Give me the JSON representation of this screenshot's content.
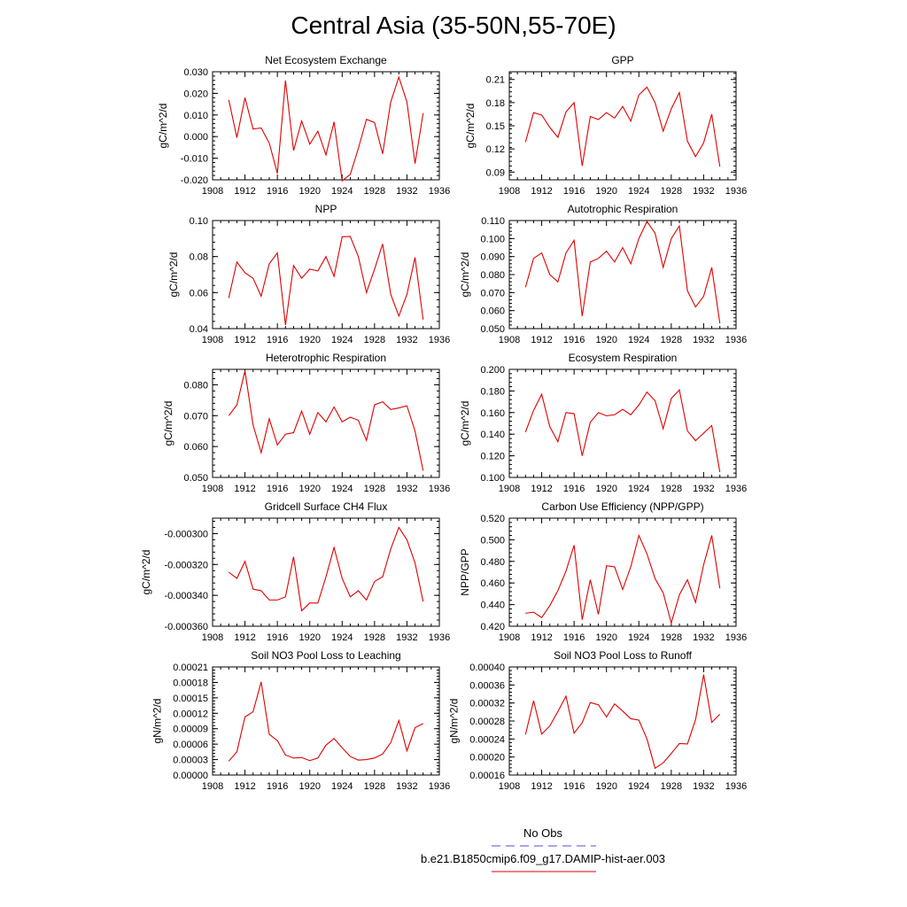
{
  "title": "Central Asia (35-50N,55-70E)",
  "colors": {
    "model_line": "#e00000",
    "obs_line": "#4f4fd8",
    "axes": "#000000"
  },
  "legend": {
    "entries": [
      {
        "label": "No Obs",
        "color": "#4f4fd8",
        "style": "dashed"
      },
      {
        "label": "b.e21.B1850cmip6.f09_g17.DAMIP-hist-aer.003",
        "color": "#e00000",
        "style": "solid"
      }
    ]
  },
  "chart_data": [
    {
      "type": "line",
      "title": "Net Ecosystem Exchange",
      "ylabel": "gC/m^2/d",
      "xlim": [
        1908,
        1936
      ],
      "xticks": [
        "1908",
        "1912",
        "1916",
        "1920",
        "1924",
        "1928",
        "1932",
        "1936"
      ],
      "ylim": [
        -0.02,
        0.03
      ],
      "yticks": [
        "-0.020",
        "-0.010",
        "0.000",
        "0.010",
        "0.020",
        "0.030"
      ],
      "x": [
        1910,
        1911,
        1912,
        1913,
        1914,
        1915,
        1916,
        1917,
        1918,
        1919,
        1920,
        1921,
        1922,
        1923,
        1924,
        1925,
        1926,
        1927,
        1928,
        1929,
        1930,
        1931,
        1932,
        1933,
        1934
      ],
      "series": [
        {
          "values": [
            0.017,
            -0.0005,
            0.018,
            0.0035,
            0.004,
            -0.003,
            -0.017,
            0.026,
            -0.0065,
            0.0072,
            -0.0035,
            0.0025,
            -0.0085,
            0.0068,
            -0.0205,
            -0.0175,
            -0.0055,
            0.008,
            0.0065,
            -0.008,
            0.016,
            0.0275,
            0.016,
            -0.0125,
            0.0108
          ]
        }
      ]
    },
    {
      "type": "line",
      "title": "GPP",
      "ylabel": "gC/m^2/d",
      "xlim": [
        1908,
        1936
      ],
      "xticks": [
        "1908",
        "1912",
        "1916",
        "1920",
        "1924",
        "1928",
        "1932",
        "1936"
      ],
      "ylim": [
        0.08,
        0.22
      ],
      "yticks": [
        "0.09",
        "0.12",
        "0.15",
        "0.18",
        "0.21"
      ],
      "x": [
        1910,
        1911,
        1912,
        1913,
        1914,
        1915,
        1916,
        1917,
        1918,
        1919,
        1920,
        1921,
        1922,
        1923,
        1924,
        1925,
        1926,
        1927,
        1928,
        1929,
        1930,
        1931,
        1932,
        1933,
        1934
      ],
      "series": [
        {
          "values": [
            0.129,
            0.167,
            0.164,
            0.148,
            0.135,
            0.168,
            0.18,
            0.098,
            0.162,
            0.158,
            0.167,
            0.16,
            0.175,
            0.156,
            0.19,
            0.2,
            0.18,
            0.143,
            0.172,
            0.193,
            0.13,
            0.11,
            0.128,
            0.165,
            0.097
          ]
        }
      ]
    },
    {
      "type": "line",
      "title": "NPP",
      "ylabel": "gC/m^2/d",
      "xlim": [
        1908,
        1936
      ],
      "xticks": [
        "1908",
        "1912",
        "1916",
        "1920",
        "1924",
        "1928",
        "1932",
        "1936"
      ],
      "ylim": [
        0.04,
        0.1
      ],
      "yticks": [
        "0.04",
        "0.06",
        "0.08",
        "0.10"
      ],
      "x": [
        1910,
        1911,
        1912,
        1913,
        1914,
        1915,
        1916,
        1917,
        1918,
        1919,
        1920,
        1921,
        1922,
        1923,
        1924,
        1925,
        1926,
        1927,
        1928,
        1929,
        1930,
        1931,
        1932,
        1933,
        1934
      ],
      "series": [
        {
          "values": [
            0.057,
            0.077,
            0.071,
            0.068,
            0.058,
            0.076,
            0.082,
            0.042,
            0.075,
            0.068,
            0.073,
            0.072,
            0.08,
            0.069,
            0.091,
            0.0912,
            0.08,
            0.06,
            0.073,
            0.087,
            0.059,
            0.047,
            0.059,
            0.0795,
            0.045
          ]
        }
      ]
    },
    {
      "type": "line",
      "title": "Autotrophic Respiration",
      "ylabel": "gC/m^2/d",
      "xlim": [
        1908,
        1936
      ],
      "xticks": [
        "1908",
        "1912",
        "1916",
        "1920",
        "1924",
        "1928",
        "1932",
        "1936"
      ],
      "ylim": [
        0.05,
        0.11
      ],
      "yticks": [
        "0.050",
        "0.060",
        "0.070",
        "0.080",
        "0.090",
        "0.100",
        "0.110"
      ],
      "x": [
        1910,
        1911,
        1912,
        1913,
        1914,
        1915,
        1916,
        1917,
        1918,
        1919,
        1920,
        1921,
        1922,
        1923,
        1924,
        1925,
        1926,
        1927,
        1928,
        1929,
        1930,
        1931,
        1932,
        1933,
        1934
      ],
      "series": [
        {
          "values": [
            0.073,
            0.089,
            0.092,
            0.08,
            0.076,
            0.092,
            0.099,
            0.057,
            0.087,
            0.089,
            0.093,
            0.087,
            0.095,
            0.086,
            0.1,
            0.1095,
            0.103,
            0.084,
            0.1,
            0.107,
            0.071,
            0.062,
            0.068,
            0.084,
            0.053
          ]
        }
      ]
    },
    {
      "type": "line",
      "title": "Heterotrophic Respiration",
      "ylabel": "gC/m^2/d",
      "xlim": [
        1908,
        1936
      ],
      "xticks": [
        "1908",
        "1912",
        "1916",
        "1920",
        "1924",
        "1928",
        "1932",
        "1936"
      ],
      "ylim": [
        0.05,
        0.085
      ],
      "yticks": [
        "0.050",
        "0.060",
        "0.070",
        "0.080"
      ],
      "x": [
        1910,
        1911,
        1912,
        1913,
        1914,
        1915,
        1916,
        1917,
        1918,
        1919,
        1920,
        1921,
        1922,
        1923,
        1924,
        1925,
        1926,
        1927,
        1928,
        1929,
        1930,
        1931,
        1932,
        1933,
        1934
      ],
      "series": [
        {
          "values": [
            0.07,
            0.0735,
            0.0845,
            0.067,
            0.058,
            0.069,
            0.0605,
            0.064,
            0.0645,
            0.0715,
            0.064,
            0.071,
            0.068,
            0.0728,
            0.068,
            0.0695,
            0.0685,
            0.062,
            0.0735,
            0.0745,
            0.072,
            0.0725,
            0.0732,
            0.065,
            0.0522
          ]
        }
      ]
    },
    {
      "type": "line",
      "title": "Ecosystem Respiration",
      "ylabel": "gC/m^2/d",
      "xlim": [
        1908,
        1936
      ],
      "xticks": [
        "1908",
        "1912",
        "1916",
        "1920",
        "1924",
        "1928",
        "1932",
        "1936"
      ],
      "ylim": [
        0.1,
        0.2
      ],
      "yticks": [
        "0.100",
        "0.120",
        "0.140",
        "0.160",
        "0.180",
        "0.200"
      ],
      "x": [
        1910,
        1911,
        1912,
        1913,
        1914,
        1915,
        1916,
        1917,
        1918,
        1919,
        1920,
        1921,
        1922,
        1923,
        1924,
        1925,
        1926,
        1927,
        1928,
        1929,
        1930,
        1931,
        1932,
        1933,
        1934
      ],
      "series": [
        {
          "values": [
            0.142,
            0.162,
            0.177,
            0.147,
            0.133,
            0.16,
            0.159,
            0.12,
            0.151,
            0.16,
            0.157,
            0.158,
            0.163,
            0.158,
            0.167,
            0.179,
            0.171,
            0.145,
            0.173,
            0.181,
            0.143,
            0.134,
            0.141,
            0.148,
            0.105
          ]
        }
      ]
    },
    {
      "type": "line",
      "title": "Gridcell Surface CH4 Flux",
      "ylabel": "gC/m^2/d",
      "xlim": [
        1908,
        1936
      ],
      "xticks": [
        "1908",
        "1912",
        "1916",
        "1920",
        "1924",
        "1928",
        "1932",
        "1936"
      ],
      "ylim": [
        -0.00036,
        -0.00029
      ],
      "yticks": [
        "-0.000360",
        "-0.000340",
        "-0.000320",
        "-0.000300"
      ],
      "x": [
        1910,
        1911,
        1912,
        1913,
        1914,
        1915,
        1916,
        1917,
        1918,
        1919,
        1920,
        1921,
        1922,
        1923,
        1924,
        1925,
        1926,
        1927,
        1928,
        1929,
        1930,
        1931,
        1932,
        1933,
        1934
      ],
      "series": [
        {
          "values": [
            -0.000325,
            -0.000329,
            -0.000318,
            -0.000336,
            -0.000337,
            -0.000343,
            -0.000343,
            -0.000341,
            -0.000315,
            -0.00035,
            -0.000345,
            -0.000345,
            -0.000328,
            -0.000309,
            -0.000329,
            -0.000341,
            -0.000337,
            -0.000343,
            -0.000331,
            -0.000328,
            -0.00031,
            -0.000296,
            -0.000304,
            -0.000319,
            -0.000344
          ]
        }
      ]
    },
    {
      "type": "line",
      "title": "Carbon Use Efficiency (NPP/GPP)",
      "ylabel": "NPP/GPP",
      "xlim": [
        1908,
        1936
      ],
      "xticks": [
        "1908",
        "1912",
        "1916",
        "1920",
        "1924",
        "1928",
        "1932",
        "1936"
      ],
      "ylim": [
        0.42,
        0.52
      ],
      "yticks": [
        "0.420",
        "0.440",
        "0.460",
        "0.480",
        "0.500",
        "0.520"
      ],
      "x": [
        1910,
        1911,
        1912,
        1913,
        1914,
        1915,
        1916,
        1917,
        1918,
        1919,
        1920,
        1921,
        1922,
        1923,
        1924,
        1925,
        1926,
        1927,
        1928,
        1929,
        1930,
        1931,
        1932,
        1933,
        1934
      ],
      "series": [
        {
          "values": [
            0.432,
            0.433,
            0.428,
            0.439,
            0.453,
            0.471,
            0.495,
            0.426,
            0.463,
            0.431,
            0.476,
            0.475,
            0.454,
            0.475,
            0.504,
            0.487,
            0.464,
            0.451,
            0.423,
            0.449,
            0.463,
            0.442,
            0.477,
            0.504,
            0.455
          ]
        }
      ]
    },
    {
      "type": "line",
      "title": "Soil NO3 Pool Loss to Leaching",
      "ylabel": "gN/m^2/d",
      "xlim": [
        1908,
        1936
      ],
      "xticks": [
        "1908",
        "1912",
        "1916",
        "1920",
        "1924",
        "1928",
        "1932",
        "1936"
      ],
      "ylim": [
        0,
        0.00021
      ],
      "yticks": [
        "0.00000",
        "0.00003",
        "0.00006",
        "0.00009",
        "0.00012",
        "0.00015",
        "0.00018",
        "0.00021"
      ],
      "x": [
        1910,
        1911,
        1912,
        1913,
        1914,
        1915,
        1916,
        1917,
        1918,
        1919,
        1920,
        1921,
        1922,
        1923,
        1924,
        1925,
        1926,
        1927,
        1928,
        1929,
        1930,
        1931,
        1932,
        1933,
        1934
      ],
      "series": [
        {
          "values": [
            2.7e-05,
            4.5e-05,
            0.000113,
            0.000123,
            0.000181,
            7.9e-05,
            6.7e-05,
            3.9e-05,
            3.3e-05,
            3.4e-05,
            2.8e-05,
            3.3e-05,
            5.8e-05,
            7.1e-05,
            5.3e-05,
            3.6e-05,
            2.9e-05,
            3e-05,
            3.3e-05,
            4.1e-05,
            6.3e-05,
            0.000106,
            4.7e-05,
            9.2e-05,
            0.0001
          ]
        }
      ]
    },
    {
      "type": "line",
      "title": "Soil NO3 Pool Loss to Runoff",
      "ylabel": "gN/m^2/d",
      "xlim": [
        1908,
        1936
      ],
      "xticks": [
        "1908",
        "1912",
        "1916",
        "1920",
        "1924",
        "1928",
        "1932",
        "1936"
      ],
      "ylim": [
        0.00016,
        0.0004
      ],
      "yticks": [
        "0.00016",
        "0.00020",
        "0.00024",
        "0.00028",
        "0.00032",
        "0.00036",
        "0.00040"
      ],
      "x": [
        1910,
        1911,
        1912,
        1913,
        1914,
        1915,
        1916,
        1917,
        1918,
        1919,
        1920,
        1921,
        1922,
        1923,
        1924,
        1925,
        1926,
        1927,
        1928,
        1929,
        1930,
        1931,
        1932,
        1933,
        1934
      ],
      "series": [
        {
          "values": [
            0.00025,
            0.000325,
            0.000251,
            0.000269,
            0.000301,
            0.000335,
            0.000253,
            0.000276,
            0.000321,
            0.000316,
            0.000289,
            0.000318,
            0.000302,
            0.000285,
            0.000282,
            0.00024,
            0.000175,
            0.000187,
            0.000208,
            0.00023,
            0.000229,
            0.000283,
            0.000383,
            0.000277,
            0.000295
          ]
        }
      ]
    }
  ]
}
